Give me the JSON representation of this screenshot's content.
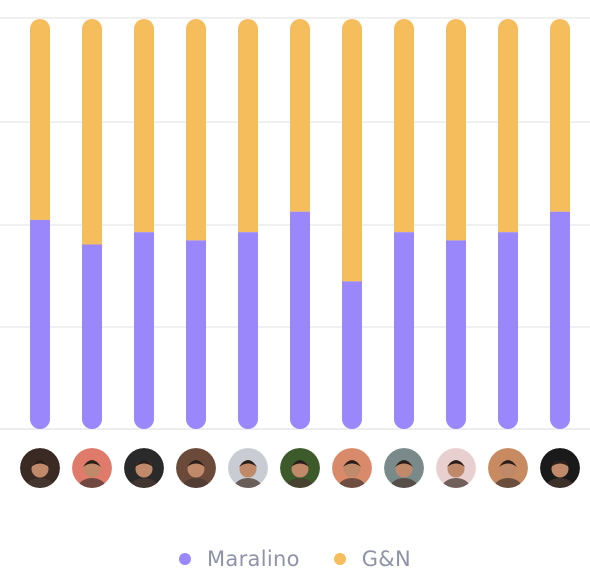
{
  "chart_data": {
    "type": "bar",
    "stacked": true,
    "orientation": "vertical",
    "categories": [
      "",
      "",
      "",
      "",
      "",
      "",
      "",
      "",
      "",
      "",
      ""
    ],
    "series": [
      {
        "name": "Maralino",
        "color": "#9b87fc",
        "values": [
          51,
          45,
          48,
          46,
          48,
          53,
          36,
          48,
          46,
          48,
          53
        ]
      },
      {
        "name": "G&N",
        "color": "#f5bd5c",
        "values": [
          49,
          55,
          52,
          54,
          52,
          47,
          64,
          52,
          54,
          52,
          47
        ]
      }
    ],
    "ylim": [
      0,
      100
    ],
    "grid": true,
    "legend_position": "bottom",
    "avatar_icons": [
      "avatar-icon",
      "avatar-icon",
      "avatar-icon",
      "avatar-icon",
      "avatar-icon",
      "avatar-icon",
      "avatar-icon",
      "avatar-icon",
      "avatar-icon",
      "avatar-icon",
      "avatar-icon"
    ],
    "avatar_colors": [
      "#3b2a24",
      "#e07a6a",
      "#2a2a2a",
      "#6b4a3a",
      "#c9ccd2",
      "#3d5a2a",
      "#d98a6a",
      "#7a8a8a",
      "#e8d0d0",
      "#c88a60",
      "#1a1a1a"
    ]
  }
}
